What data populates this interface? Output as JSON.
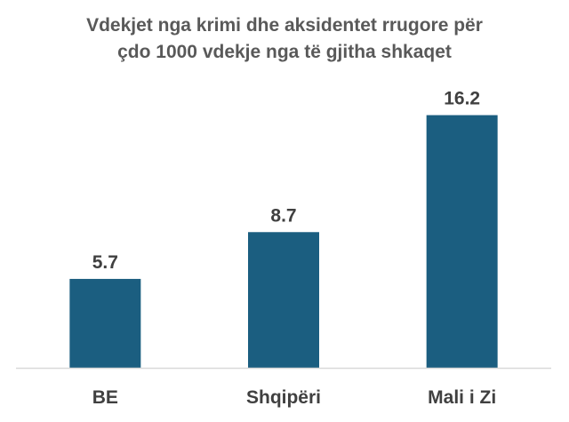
{
  "chart_data": {
    "type": "bar",
    "title_lines": [
      "Vdekjet nga krimi dhe aksidentet rrugore për",
      "çdo 1000 vdekje nga të gjitha shkaqet"
    ],
    "categories": [
      "BE",
      "Shqipëri",
      "Mali i Zi"
    ],
    "values": [
      5.7,
      8.7,
      16.2
    ],
    "value_labels": [
      "5.7",
      "8.7",
      "16.2"
    ],
    "xlabel": "",
    "ylabel": "",
    "ylim": [
      0,
      18
    ],
    "grid": false,
    "legend": "none",
    "bar_color": "#1b5e80",
    "label_color": "#404040",
    "axis_color": "#d9d9d9"
  }
}
